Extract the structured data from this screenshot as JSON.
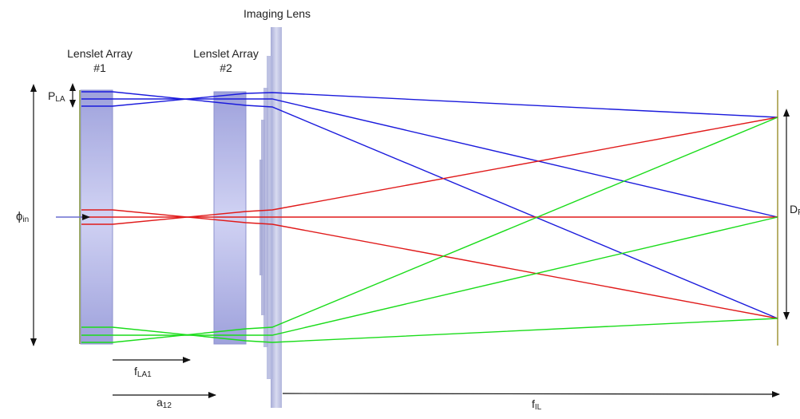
{
  "labels": {
    "imaging_lens": "Imaging Lens",
    "lenslet_array_1_line1": "Lenslet Array",
    "lenslet_array_1_line2": "#1",
    "lenslet_array_2_line1": "Lenslet Array",
    "lenslet_array_2_line2": "#2",
    "pitch_main": "P",
    "pitch_sub": "LA",
    "phi_main": "ϕ",
    "phi_sub": "in",
    "focal_la1_main": "f",
    "focal_la1_sub": "LA1",
    "spacing_main": "a",
    "spacing_sub": "12",
    "focal_il_main": "f",
    "focal_il_sub": "IL",
    "field_main": "D",
    "field_sub": "FT"
  },
  "colors": {
    "lenslet_fill": "#a9ace0",
    "lenslet_stroke": "#7a7fc6",
    "imaging_lens_fill": "#b8bde0",
    "screen_stroke": "#b8b06a",
    "ray_top": "#1a1adc",
    "ray_center": "#e01a1a",
    "ray_bottom": "#1adc1a",
    "arrow": "#111111"
  }
}
